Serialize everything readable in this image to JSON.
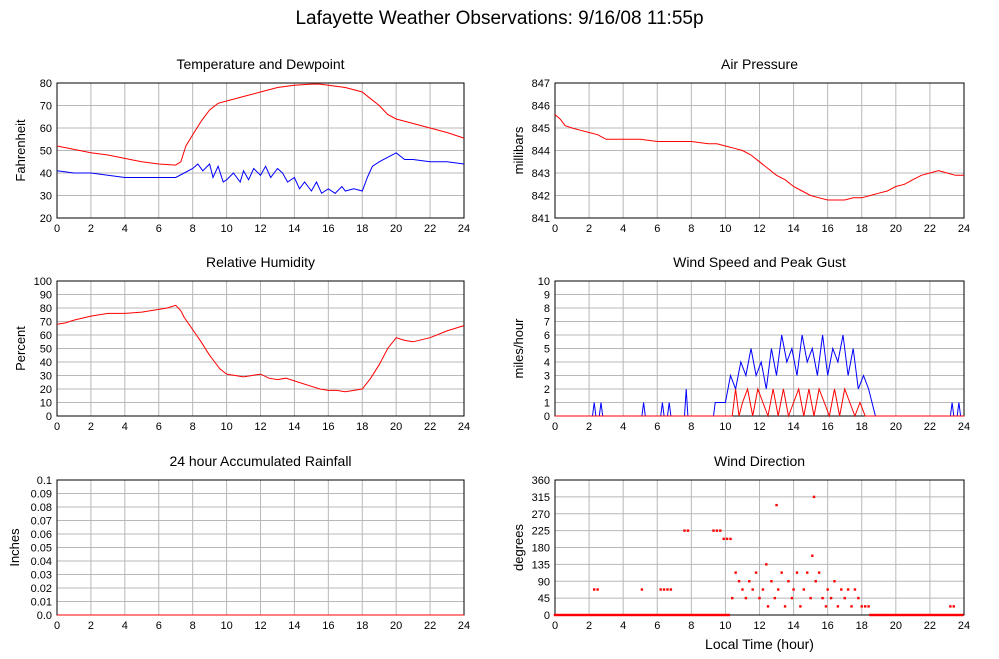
{
  "page": {
    "title": "Lafayette Weather Observations: 9/16/08 11:55p"
  },
  "chart_data": [
    {
      "id": "temp",
      "type": "line",
      "title": "Temperature and Dewpoint",
      "xlabel": "",
      "ylabel": "Fahrenheit",
      "xlim": [
        0,
        24
      ],
      "ylim": [
        20,
        80
      ],
      "xticks": [
        0,
        2,
        4,
        6,
        8,
        10,
        12,
        14,
        16,
        18,
        20,
        22,
        24
      ],
      "yticks": [
        20,
        30,
        40,
        50,
        60,
        70,
        80
      ],
      "ytick_labels": [
        "20",
        "30",
        "40",
        "50",
        "60",
        "70",
        "80"
      ],
      "grid": true,
      "series": [
        {
          "color": "#ff0000",
          "x": [
            0,
            1,
            2,
            3,
            4,
            5,
            6,
            7,
            7.3,
            7.6,
            8,
            8.5,
            9,
            9.5,
            10,
            11,
            12,
            13,
            14,
            15,
            15.5,
            16,
            17,
            18,
            18.5,
            19,
            19.5,
            20,
            21,
            22,
            23,
            24
          ],
          "y": [
            52,
            50.5,
            49,
            48,
            46.5,
            45,
            44,
            43.5,
            45,
            52,
            57,
            63,
            68,
            71,
            72,
            74,
            76,
            78,
            79,
            79.5,
            79.5,
            79,
            78,
            76,
            73,
            70,
            66,
            64,
            62,
            60,
            58,
            55.5
          ]
        },
        {
          "color": "#0000ff",
          "x": [
            0,
            1,
            2,
            3,
            4,
            5,
            6,
            7,
            7.5,
            8,
            8.3,
            8.6,
            9,
            9.2,
            9.5,
            9.8,
            10,
            10.4,
            10.8,
            11,
            11.3,
            11.6,
            12,
            12.3,
            12.6,
            13,
            13.3,
            13.6,
            14,
            14.3,
            14.6,
            15,
            15.3,
            15.6,
            16,
            16.4,
            16.8,
            17,
            17.5,
            18,
            18.3,
            18.6,
            19,
            19.5,
            20,
            20.5,
            21,
            22,
            23,
            24
          ],
          "y": [
            41,
            40,
            40,
            39,
            38,
            38,
            38,
            38,
            40,
            42,
            44,
            41,
            44,
            38,
            43,
            36,
            37,
            40,
            36,
            41,
            37,
            42,
            39,
            43,
            38,
            42,
            40,
            36,
            38,
            33,
            36,
            32,
            36,
            31,
            33,
            31,
            34,
            32,
            33,
            32,
            38,
            43,
            45,
            47,
            49,
            46,
            46,
            45,
            45,
            44
          ]
        }
      ]
    },
    {
      "id": "pressure",
      "type": "line",
      "title": "Air Pressure",
      "xlabel": "",
      "ylabel": "millibars",
      "xlim": [
        0,
        24
      ],
      "ylim": [
        841,
        847
      ],
      "xticks": [
        0,
        2,
        4,
        6,
        8,
        10,
        12,
        14,
        16,
        18,
        20,
        22,
        24
      ],
      "yticks": [
        841,
        842,
        843,
        844,
        845,
        846,
        847
      ],
      "ytick_labels": [
        "841",
        "842",
        "843",
        "844",
        "845",
        "846",
        "847"
      ],
      "grid": true,
      "series": [
        {
          "color": "#ff0000",
          "x": [
            0,
            0.3,
            0.6,
            1,
            1.5,
            2,
            2.5,
            3,
            4,
            5,
            6,
            7,
            8,
            9,
            9.5,
            10,
            10.5,
            11,
            11.5,
            12,
            12.5,
            13,
            13.5,
            14,
            14.5,
            15,
            15.5,
            16,
            16.5,
            17,
            17.5,
            18,
            18.5,
            19,
            19.5,
            20,
            20.5,
            21,
            21.5,
            22,
            22.5,
            23,
            23.5,
            24
          ],
          "y": [
            845.6,
            845.4,
            845.1,
            845,
            844.9,
            844.8,
            844.7,
            844.5,
            844.5,
            844.5,
            844.4,
            844.4,
            844.4,
            844.3,
            844.3,
            844.2,
            844.1,
            844,
            843.8,
            843.5,
            843.2,
            842.9,
            842.7,
            842.4,
            842.2,
            842,
            841.9,
            841.8,
            841.8,
            841.8,
            841.9,
            841.9,
            842,
            842.1,
            842.2,
            842.4,
            842.5,
            842.7,
            842.9,
            843,
            843.1,
            843,
            842.9,
            842.9
          ]
        }
      ]
    },
    {
      "id": "humidity",
      "type": "line",
      "title": "Relative Humidity",
      "xlabel": "",
      "ylabel": "Percent",
      "xlim": [
        0,
        24
      ],
      "ylim": [
        0,
        100
      ],
      "xticks": [
        0,
        2,
        4,
        6,
        8,
        10,
        12,
        14,
        16,
        18,
        20,
        22,
        24
      ],
      "yticks": [
        0,
        10,
        20,
        30,
        40,
        50,
        60,
        70,
        80,
        90,
        100
      ],
      "ytick_labels": [
        "0",
        "10",
        "20",
        "30",
        "40",
        "50",
        "60",
        "70",
        "80",
        "90",
        "100"
      ],
      "grid": true,
      "series": [
        {
          "color": "#ff0000",
          "x": [
            0,
            0.5,
            1,
            2,
            3,
            4,
            5,
            6,
            6.5,
            7,
            7.3,
            7.5,
            8,
            8.5,
            9,
            9.3,
            9.6,
            10,
            10.5,
            11,
            11.5,
            12,
            12.5,
            13,
            13.5,
            14,
            14.5,
            15,
            15.5,
            16,
            16.5,
            17,
            17.5,
            18,
            18.5,
            19,
            19.5,
            20,
            20.5,
            21,
            22,
            23,
            24
          ],
          "y": [
            68,
            69,
            71,
            74,
            76,
            76,
            77,
            79,
            80,
            82,
            78,
            73,
            64,
            55,
            45,
            40,
            35,
            31,
            30,
            29,
            30,
            31,
            28,
            27,
            28,
            26,
            24,
            22,
            20,
            19,
            19,
            18,
            19,
            20,
            28,
            38,
            50,
            58,
            56,
            55,
            58,
            63,
            67
          ]
        }
      ]
    },
    {
      "id": "wind",
      "type": "line",
      "title": "Wind Speed and Peak Gust",
      "xlabel": "",
      "ylabel": "miles/hour",
      "xlim": [
        0,
        24
      ],
      "ylim": [
        0,
        10
      ],
      "xticks": [
        0,
        2,
        4,
        6,
        8,
        10,
        12,
        14,
        16,
        18,
        20,
        22,
        24
      ],
      "yticks": [
        0,
        1,
        2,
        3,
        4,
        5,
        6,
        7,
        8,
        9,
        10
      ],
      "ytick_labels": [
        "0",
        "1",
        "2",
        "3",
        "4",
        "5",
        "6",
        "7",
        "8",
        "9",
        "10"
      ],
      "grid": true,
      "series": [
        {
          "color": "#0000ff",
          "x": [
            0,
            2.2,
            2.3,
            2.4,
            2.6,
            2.7,
            2.8,
            5.1,
            5.2,
            5.3,
            6.2,
            6.3,
            6.4,
            6.6,
            6.7,
            6.8,
            7.6,
            7.7,
            7.8,
            9.3,
            9.4,
            10,
            10.3,
            10.6,
            10.9,
            11.2,
            11.5,
            11.8,
            12.1,
            12.4,
            12.7,
            13,
            13.3,
            13.6,
            13.9,
            14.2,
            14.5,
            14.8,
            15.1,
            15.4,
            15.7,
            16,
            16.3,
            16.6,
            16.9,
            17.2,
            17.5,
            17.8,
            18.1,
            18.4,
            18.6,
            18.8,
            23.2,
            23.3,
            23.4,
            23.6,
            23.7,
            23.8,
            24
          ],
          "y": [
            0,
            0,
            1,
            0,
            0,
            1,
            0,
            0,
            1,
            0,
            0,
            1,
            0,
            0,
            1,
            0,
            0,
            2,
            0,
            0,
            1,
            1,
            3,
            2,
            4,
            3,
            5,
            3,
            4,
            2,
            5,
            3,
            6,
            4,
            5,
            3,
            6,
            4,
            5,
            3,
            6,
            3,
            5,
            4,
            6,
            3,
            5,
            2,
            3,
            2,
            1,
            0,
            0,
            1,
            0,
            0,
            1,
            0,
            0
          ]
        },
        {
          "color": "#ff0000",
          "x": [
            0,
            10.4,
            10.6,
            10.8,
            11,
            11.3,
            11.6,
            11.9,
            12.2,
            12.5,
            12.8,
            13.1,
            13.4,
            13.7,
            14,
            14.3,
            14.6,
            14.9,
            15.2,
            15.5,
            15.8,
            16.1,
            16.4,
            16.7,
            17,
            17.3,
            17.6,
            17.9,
            18.2,
            24
          ],
          "y": [
            0,
            0,
            2,
            0,
            1,
            2,
            0,
            2,
            1,
            0,
            2,
            0,
            2,
            0,
            1,
            2,
            0,
            2,
            0,
            2,
            1,
            0,
            2,
            0,
            2,
            1,
            0,
            1,
            0,
            0
          ]
        }
      ]
    },
    {
      "id": "rain",
      "type": "line",
      "title": "24 hour Accumulated Rainfall",
      "xlabel": "",
      "ylabel": "Inches",
      "xlim": [
        0,
        24
      ],
      "ylim": [
        0,
        0.1
      ],
      "xticks": [
        0,
        2,
        4,
        6,
        8,
        10,
        12,
        14,
        16,
        18,
        20,
        22,
        24
      ],
      "yticks": [
        0,
        0.01,
        0.02,
        0.03,
        0.04,
        0.05,
        0.06,
        0.07,
        0.08,
        0.09,
        0.1
      ],
      "ytick_labels": [
        "0.0",
        "0.01",
        "0.02",
        "0.03",
        "0.04",
        "0.05",
        "0.06",
        "0.07",
        "0.08",
        "0.09",
        "0.1"
      ],
      "grid": true,
      "series": [
        {
          "color": "#ff0000",
          "x": [
            0,
            24
          ],
          "y": [
            0,
            0
          ]
        }
      ]
    },
    {
      "id": "direction",
      "type": "scatter",
      "title": "Wind Direction",
      "xlabel": "Local Time (hour)",
      "ylabel": "degrees",
      "xlim": [
        0,
        24
      ],
      "ylim": [
        0,
        360
      ],
      "xticks": [
        0,
        2,
        4,
        6,
        8,
        10,
        12,
        14,
        16,
        18,
        20,
        22,
        24
      ],
      "yticks": [
        0,
        45,
        90,
        135,
        180,
        225,
        270,
        315,
        360
      ],
      "ytick_labels": [
        "0",
        "45",
        "90",
        "135",
        "180",
        "225",
        "270",
        "315",
        "360"
      ],
      "grid": true,
      "series": [
        {
          "color": "#ff0000",
          "points": [
            [
              2.3,
              68
            ],
            [
              2.5,
              68
            ],
            [
              5.1,
              68
            ],
            [
              6.2,
              68
            ],
            [
              6.4,
              68
            ],
            [
              6.6,
              68
            ],
            [
              6.8,
              68
            ],
            [
              7.6,
              225
            ],
            [
              7.8,
              225
            ],
            [
              9.3,
              225
            ],
            [
              9.5,
              225
            ],
            [
              9.7,
              225
            ],
            [
              9.9,
              203
            ],
            [
              10.1,
              203
            ],
            [
              10.3,
              203
            ],
            [
              10.4,
              45
            ],
            [
              10.6,
              113
            ],
            [
              10.8,
              90
            ],
            [
              11.0,
              68
            ],
            [
              11.2,
              45
            ],
            [
              11.4,
              90
            ],
            [
              11.6,
              68
            ],
            [
              11.8,
              113
            ],
            [
              12.0,
              45
            ],
            [
              12.2,
              68
            ],
            [
              12.4,
              135
            ],
            [
              12.5,
              23
            ],
            [
              12.7,
              90
            ],
            [
              12.9,
              45
            ],
            [
              13.0,
              293
            ],
            [
              13.1,
              68
            ],
            [
              13.3,
              113
            ],
            [
              13.5,
              23
            ],
            [
              13.7,
              90
            ],
            [
              13.9,
              45
            ],
            [
              14.0,
              68
            ],
            [
              14.2,
              113
            ],
            [
              14.4,
              23
            ],
            [
              14.6,
              68
            ],
            [
              14.8,
              113
            ],
            [
              15.0,
              45
            ],
            [
              15.1,
              158
            ],
            [
              15.2,
              315
            ],
            [
              15.3,
              90
            ],
            [
              15.5,
              113
            ],
            [
              15.7,
              45
            ],
            [
              15.9,
              23
            ],
            [
              16.0,
              68
            ],
            [
              16.2,
              45
            ],
            [
              16.4,
              90
            ],
            [
              16.6,
              23
            ],
            [
              16.8,
              68
            ],
            [
              17.0,
              45
            ],
            [
              17.2,
              68
            ],
            [
              17.4,
              23
            ],
            [
              17.6,
              68
            ],
            [
              17.8,
              45
            ],
            [
              18.0,
              23
            ],
            [
              18.2,
              23
            ],
            [
              18.4,
              23
            ],
            [
              23.2,
              23
            ],
            [
              23.4,
              23
            ]
          ],
          "baseline": {
            "y": 0,
            "ranges": [
              [
                0,
                10.2
              ],
              [
                18.5,
                24
              ]
            ]
          }
        }
      ]
    }
  ]
}
